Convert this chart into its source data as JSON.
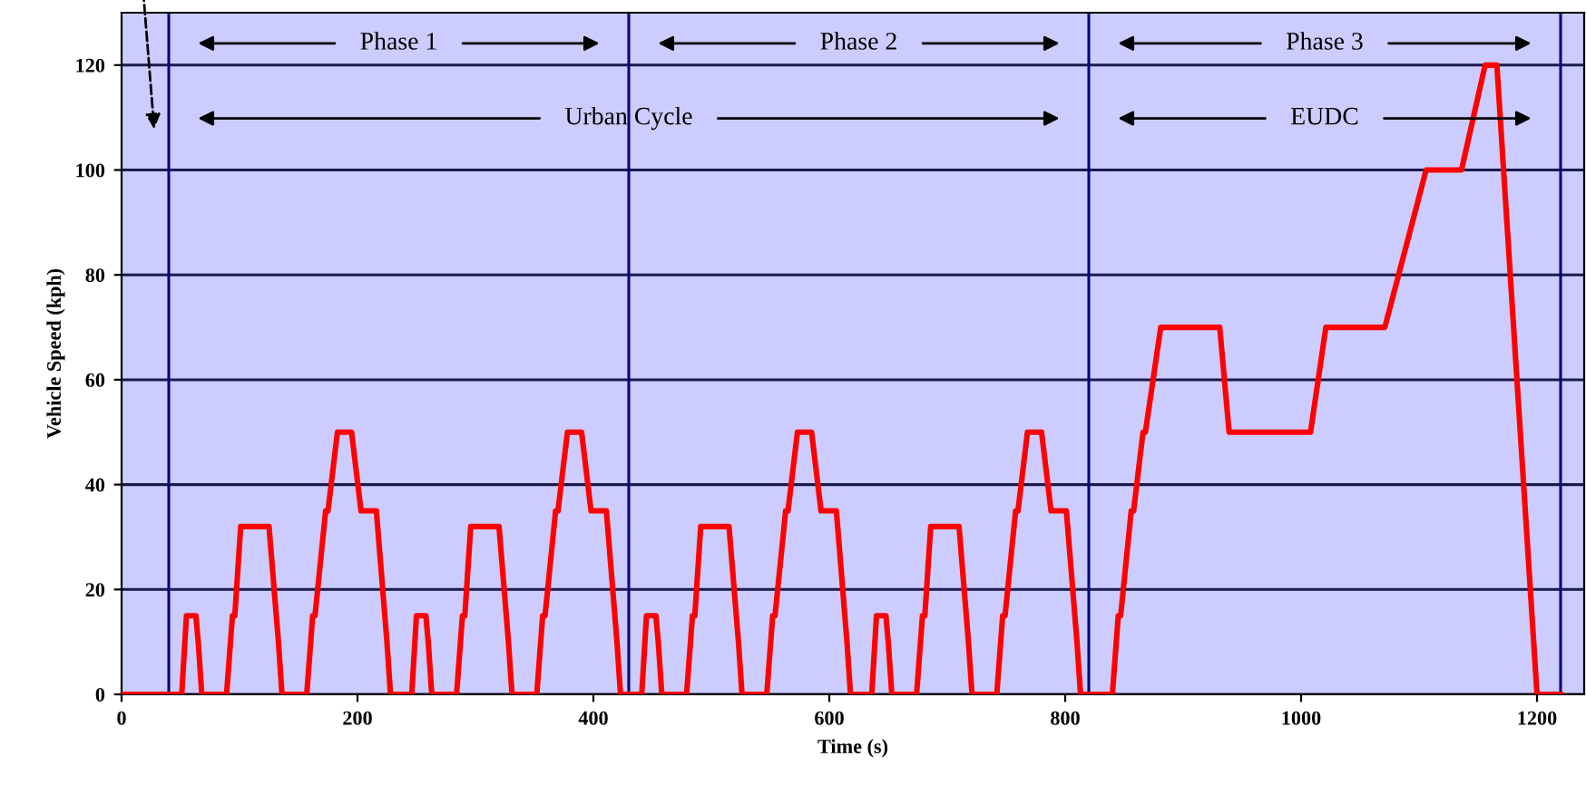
{
  "chart_data": {
    "type": "line",
    "xlabel": "Time (s)",
    "ylabel": "Vehicle Speed (kph)",
    "series": [
      {
        "color": "#ff0000",
        "x": [
          0,
          40,
          51,
          55,
          63,
          65,
          68,
          89,
          94,
          96,
          101,
          125,
          133,
          136,
          157,
          162,
          164,
          173,
          175,
          183,
          195,
          203,
          216,
          225,
          228,
          235,
          246,
          250,
          258,
          260,
          263,
          284,
          289,
          291,
          296,
          320,
          328,
          331,
          352,
          357,
          359,
          368,
          370,
          378,
          390,
          398,
          411,
          420,
          423,
          430,
          441,
          445,
          453,
          455,
          458,
          479,
          484,
          486,
          491,
          515,
          523,
          526,
          547,
          552,
          554,
          563,
          565,
          573,
          585,
          593,
          606,
          615,
          618,
          625,
          636,
          640,
          648,
          650,
          653,
          674,
          679,
          681,
          686,
          710,
          718,
          721,
          742,
          747,
          749,
          758,
          760,
          768,
          780,
          788,
          801,
          810,
          813,
          820,
          840,
          845,
          847,
          856,
          858,
          866,
          868,
          881,
          931,
          939,
          1008,
          1021,
          1071,
          1106,
          1136,
          1156,
          1166,
          1200,
          1220
        ],
        "values": [
          0,
          0,
          0,
          15,
          15,
          10,
          0,
          0,
          15,
          15,
          32,
          32,
          10,
          0,
          0,
          15,
          15,
          35,
          35,
          50,
          50,
          35,
          35,
          10,
          0,
          0,
          0,
          15,
          15,
          10,
          0,
          0,
          15,
          15,
          32,
          32,
          10,
          0,
          0,
          15,
          15,
          35,
          35,
          50,
          50,
          35,
          35,
          10,
          0,
          0,
          0,
          15,
          15,
          10,
          0,
          0,
          15,
          15,
          32,
          32,
          10,
          0,
          0,
          15,
          15,
          35,
          35,
          50,
          50,
          35,
          35,
          10,
          0,
          0,
          0,
          15,
          15,
          10,
          0,
          0,
          15,
          15,
          32,
          32,
          10,
          0,
          0,
          15,
          15,
          35,
          35,
          50,
          50,
          35,
          35,
          10,
          0,
          0,
          0,
          15,
          15,
          35,
          35,
          50,
          50,
          70,
          70,
          50,
          50,
          70,
          70,
          100,
          100,
          120,
          120,
          0,
          0
        ]
      }
    ],
    "xlim": [
      0,
      1240
    ],
    "xticks": [
      0,
      200,
      400,
      600,
      800,
      1000,
      1200
    ],
    "ylim": [
      0,
      130
    ],
    "yticks": [
      0,
      20,
      40,
      60,
      80,
      100,
      120
    ],
    "grid": "y",
    "marker": "none",
    "line_style": "solid",
    "ref_lines": [
      {
        "axis": "x",
        "value": 40,
        "color": "#000080"
      },
      {
        "axis": "x",
        "value": 430,
        "color": "#000080"
      },
      {
        "axis": "x",
        "value": 820,
        "color": "#000080"
      },
      {
        "axis": "x",
        "value": 1220,
        "color": "#000080"
      }
    ],
    "annotations": [
      "Phase 1",
      "Phase 2",
      "Phase 3",
      "Urban Cycle",
      "EUDC"
    ]
  }
}
